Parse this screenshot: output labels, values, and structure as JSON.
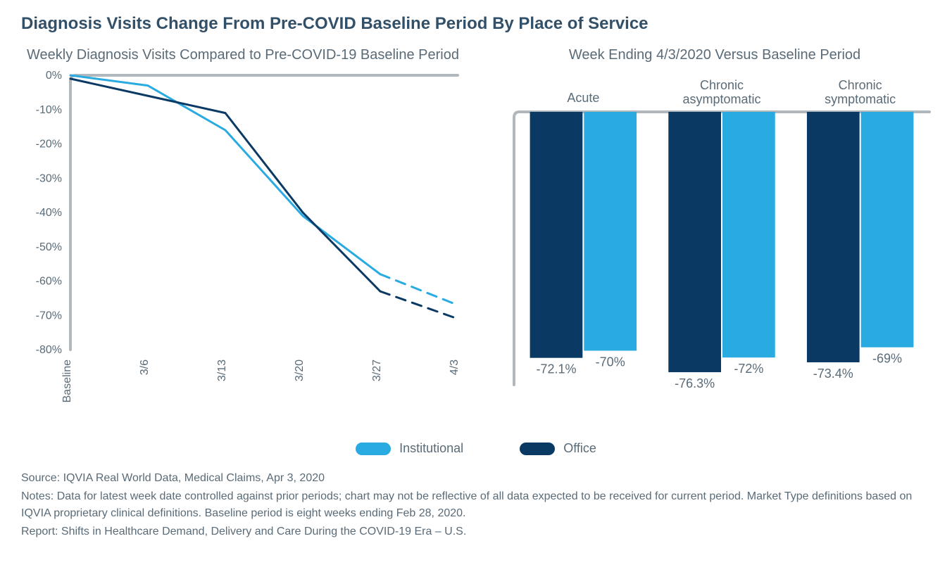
{
  "title": "Diagnosis Visits Change From Pre-COVID Baseline Period By Place of Service",
  "colors": {
    "institutional": "#29abe2",
    "office": "#0a3a64",
    "axis": "#b0b7bd",
    "text": "#5a6b78",
    "title": "#335069",
    "bg": "#ffffff"
  },
  "line_chart": {
    "type": "line",
    "title": "Weekly Diagnosis Visits Compared to Pre-COVID-19 Baseline Period",
    "x_labels": [
      "Baseline",
      "3/6",
      "3/13",
      "3/20",
      "3/27",
      "4/3"
    ],
    "y_ticks": [
      0,
      -10,
      -20,
      -30,
      -40,
      -50,
      -60,
      -70,
      -80
    ],
    "y_tick_labels": [
      "0%",
      "-10%",
      "-20%",
      "-30%",
      "-40%",
      "-50%",
      "-60%",
      "-70%",
      "-80%"
    ],
    "ylim": [
      -80,
      0
    ],
    "series": [
      {
        "name": "Institutional",
        "color": "#29abe2",
        "values_solid": [
          0,
          -3,
          -16,
          -41,
          -58
        ],
        "values_dashed_from": 4,
        "values_dashed": [
          -58,
          -67
        ],
        "line_width": 3
      },
      {
        "name": "Office",
        "color": "#0a3a64",
        "values_solid": [
          -1,
          -6,
          -11,
          -40,
          -63
        ],
        "values_dashed_from": 4,
        "values_dashed": [
          -63,
          -71
        ],
        "line_width": 3
      }
    ],
    "axis_width": 4,
    "label_fontsize": 16,
    "x_label_rotation": -90
  },
  "bar_chart": {
    "type": "bar",
    "title": "Week Ending 4/3/2020 Versus Baseline Period",
    "categories": [
      "Acute",
      "Chronic asymptomatic",
      "Chronic symptomatic"
    ],
    "ylim": [
      -80,
      0
    ],
    "groups": [
      {
        "name": "Institutional",
        "color": "#29abe2",
        "values": [
          -70,
          -72,
          -69
        ],
        "labels": [
          "-70%",
          "-72%",
          "-69%"
        ]
      },
      {
        "name": "Office",
        "color": "#0a3a64",
        "values": [
          -72.1,
          -76.3,
          -73.4
        ],
        "labels": [
          "-72.1%",
          "-76.3%",
          "-73.4%"
        ]
      }
    ],
    "bar_width": 0.38,
    "axis_width": 4,
    "label_fontsize": 16,
    "value_label_fontsize": 18
  },
  "legend": {
    "items": [
      {
        "label": "Institutional",
        "color": "#29abe2"
      },
      {
        "label": "Office",
        "color": "#0a3a64"
      }
    ]
  },
  "footer": {
    "source": "Source: IQVIA Real World Data, Medical Claims, Apr 3, 2020",
    "notes": "Notes: Data for latest week date controlled against prior periods; chart may not be reflective of all data expected to be received for current period. Market Type definitions based on IQVIA proprietary clinical definitions. Baseline period is eight weeks ending Feb 28, 2020.",
    "report": "Report: Shifts in Healthcare Demand, Delivery and Care During the COVID-19 Era – U.S."
  }
}
